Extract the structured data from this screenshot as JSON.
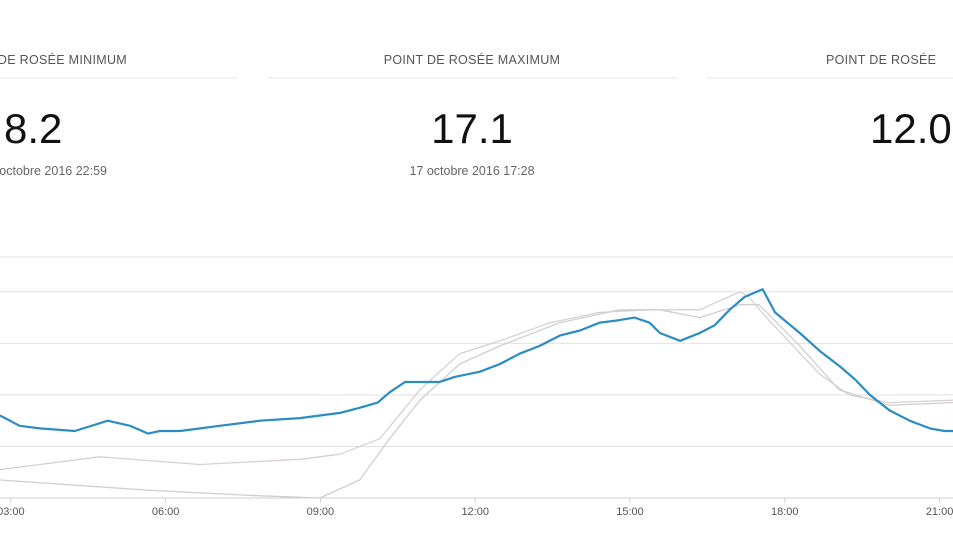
{
  "cards": [
    {
      "title": "POINT DE ROSÉE MINIMUM",
      "value": "8.2",
      "date": "octobre 2016 22:59"
    },
    {
      "title": "POINT DE ROSÉE MAXIMUM",
      "value": "17.1",
      "date": "17 octobre 2016 17:28"
    },
    {
      "title": "POINT DE ROSÉE",
      "value": "12.0"
    }
  ],
  "chart_data": {
    "type": "line",
    "xlim": [
      2.79,
      21.26
    ],
    "xticks": [
      {
        "value": 3,
        "label": "03:00"
      },
      {
        "value": 6,
        "label": "06:00"
      },
      {
        "value": 9,
        "label": "09:00"
      },
      {
        "value": 12,
        "label": "12:00"
      },
      {
        "value": 15,
        "label": "15:00"
      },
      {
        "value": 18,
        "label": "18:00"
      },
      {
        "value": 21,
        "label": "21:00"
      }
    ],
    "ylim": [
      9,
      18.35
    ],
    "yticks": [
      9,
      11,
      13,
      15,
      17
    ],
    "grid": true,
    "series": [
      {
        "color": "#d9cfd2",
        "x": [
          2.79,
          4.72,
          6.66,
          8.6,
          9.38,
          10.15,
          10.93,
          11.7,
          12.48,
          13.45,
          14.41,
          15.38,
          16.35,
          17.13,
          17.3,
          17.69,
          18.68,
          19.24,
          20.02,
          21.26
        ],
        "values": [
          10.1,
          10.6,
          10.3,
          10.5,
          10.7,
          11.3,
          13.2,
          14.6,
          15.1,
          15.8,
          16.2,
          16.3,
          16.3,
          17.0,
          16.8,
          15.9,
          13.8,
          13.0,
          12.7,
          12.8
        ]
      },
      {
        "color": "#cfcfcf",
        "x": [
          2.79,
          5.69,
          7.63,
          8.99,
          9.76,
          10.34,
          10.93,
          11.7,
          12.48,
          13.64,
          14.8,
          15.58,
          16.35,
          17.13,
          17.5,
          18.29,
          19.05,
          20.02,
          21.26
        ],
        "values": [
          9.7,
          9.3,
          9.1,
          9.0,
          9.7,
          11.3,
          12.8,
          14.2,
          14.9,
          15.8,
          16.3,
          16.3,
          16.0,
          16.5,
          16.5,
          14.9,
          13.2,
          12.6,
          12.7
        ]
      },
      {
        "color": "#2b8cc4",
        "x": [
          2.79,
          3.17,
          3.56,
          4.24,
          4.88,
          5.31,
          5.66,
          5.89,
          6.28,
          7.05,
          7.83,
          8.6,
          9.38,
          9.76,
          10.11,
          10.34,
          10.64,
          11.31,
          11.6,
          12.09,
          12.48,
          12.86,
          13.25,
          13.64,
          14.03,
          14.41,
          14.8,
          15.09,
          15.38,
          15.58,
          15.97,
          16.35,
          16.64,
          16.93,
          17.22,
          17.57,
          17.81,
          18.29,
          18.68,
          19.07,
          19.36,
          19.65,
          20.03,
          20.42,
          20.81,
          21.1,
          21.26
        ],
        "values": [
          12.2,
          11.8,
          11.7,
          11.6,
          12.0,
          11.8,
          11.5,
          11.6,
          11.6,
          11.8,
          12.0,
          12.1,
          12.3,
          12.5,
          12.7,
          13.1,
          13.5,
          13.5,
          13.7,
          13.9,
          14.2,
          14.6,
          14.9,
          15.3,
          15.5,
          15.8,
          15.9,
          16.0,
          15.8,
          15.4,
          15.1,
          15.4,
          15.7,
          16.3,
          16.8,
          17.1,
          16.2,
          15.4,
          14.7,
          14.1,
          13.6,
          13.0,
          12.4,
          12.0,
          11.7,
          11.6,
          11.6
        ]
      }
    ]
  }
}
